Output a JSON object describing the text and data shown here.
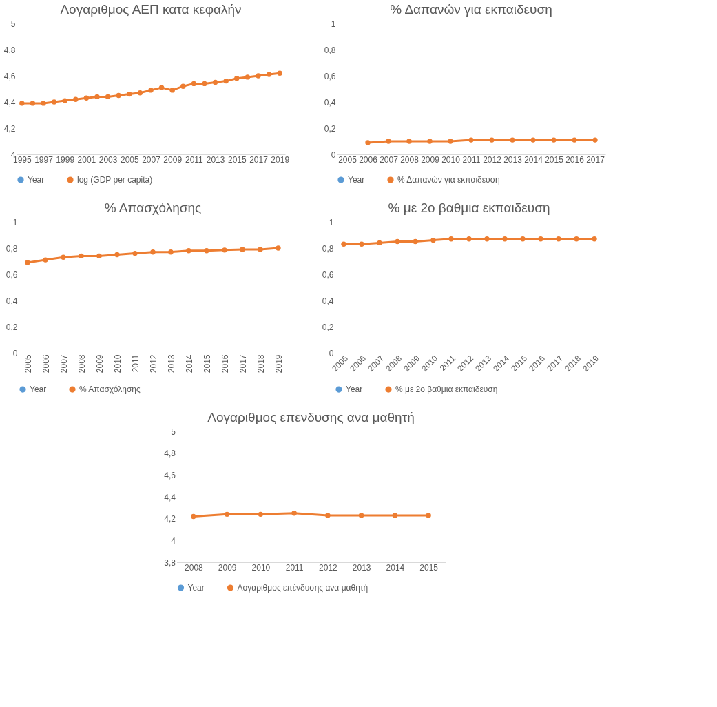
{
  "chart_data": [
    {
      "type": "line",
      "title": "Λογαριθμος ΑΕΠ κατα κεφαλήν",
      "categories": [
        "1995",
        null,
        "1997",
        null,
        "1999",
        null,
        "2001",
        null,
        "2003",
        null,
        "2005",
        null,
        "2007",
        null,
        "2009",
        null,
        "2011",
        null,
        "2013",
        null,
        "2015",
        null,
        "2017",
        null,
        "2019"
      ],
      "series": [
        {
          "name": "Year",
          "color": "#5b9bd5",
          "values": [
            null,
            null,
            null,
            null,
            null,
            null,
            null,
            null,
            null,
            null,
            null,
            null,
            null,
            null,
            null,
            null,
            null,
            null,
            null,
            null,
            null,
            null,
            null,
            null,
            null
          ]
        },
        {
          "name": "log (GDP per capita)",
          "color": "#ed7d31",
          "values": [
            4.39,
            4.39,
            4.39,
            4.4,
            4.41,
            4.42,
            4.43,
            4.44,
            4.44,
            4.45,
            4.46,
            4.47,
            4.49,
            4.51,
            4.49,
            4.52,
            4.54,
            4.54,
            4.55,
            4.56,
            4.58,
            4.59,
            4.6,
            4.61,
            4.62
          ]
        }
      ],
      "ylim": [
        4,
        5
      ],
      "yticks": [
        4,
        {
          "value": 4.2,
          "label": "4,2"
        },
        {
          "value": 4.4,
          "label": "4,4"
        },
        {
          "value": 4.6,
          "label": "4,6"
        },
        {
          "value": 4.8,
          "label": "4,8"
        },
        5
      ],
      "grid": false,
      "legend": "bottom",
      "marker": "circle",
      "line_style": "solid"
    },
    {
      "type": "line",
      "title": "% Δαπανών για εκπαιδευση",
      "categories": [
        "2005",
        "2006",
        "2007",
        "2008",
        "2009",
        "2010",
        "2011",
        "2012",
        "2013",
        "2014",
        "2015",
        "2016",
        "2017"
      ],
      "series": [
        {
          "name": "Year",
          "color": "#5b9bd5",
          "values": [
            null,
            null,
            null,
            null,
            null,
            null,
            null,
            null,
            null,
            null,
            null,
            null,
            null
          ]
        },
        {
          "name": "% Δαπανών για εκπαιδευση",
          "color": "#ed7d31",
          "values": [
            null,
            0.09,
            0.1,
            0.1,
            0.1,
            0.1,
            0.11,
            0.11,
            0.11,
            0.11,
            0.11,
            0.11,
            0.11
          ]
        }
      ],
      "ylim": [
        0,
        1
      ],
      "yticks": [
        0,
        {
          "value": 0.2,
          "label": "0,2"
        },
        {
          "value": 0.4,
          "label": "0,4"
        },
        {
          "value": 0.6,
          "label": "0,6"
        },
        {
          "value": 0.8,
          "label": "0,8"
        },
        1
      ],
      "grid": false,
      "legend": "bottom",
      "marker": "circle",
      "line_style": "solid"
    },
    {
      "type": "line",
      "title": "% Απασχόλησης",
      "categories": [
        "2005",
        "2006",
        "2007",
        "2008",
        "2009",
        "2010",
        "2011",
        "2012",
        "2013",
        "2014",
        "2015",
        "2016",
        "2017",
        "2018",
        "2019"
      ],
      "series": [
        {
          "name": "Year",
          "color": "#5b9bd5",
          "values": [
            null,
            null,
            null,
            null,
            null,
            null,
            null,
            null,
            null,
            null,
            null,
            null,
            null,
            null,
            null
          ]
        },
        {
          "name": "% Απασχόλησης",
          "color": "#ed7d31",
          "values": [
            0.69,
            0.71,
            0.73,
            0.74,
            0.74,
            0.75,
            0.76,
            0.77,
            0.77,
            0.78,
            0.78,
            0.785,
            0.79,
            0.79,
            0.8
          ]
        }
      ],
      "ylim": [
        0,
        1
      ],
      "yticks": [
        0,
        {
          "value": 0.2,
          "label": "0,2"
        },
        {
          "value": 0.4,
          "label": "0,4"
        },
        {
          "value": 0.6,
          "label": "0,6"
        },
        {
          "value": 0.8,
          "label": "0,8"
        },
        1
      ],
      "grid": false,
      "legend": "bottom",
      "marker": "circle",
      "line_style": "solid"
    },
    {
      "type": "line",
      "title": "% με 2ο βαθμια εκπαιδευση",
      "categories": [
        "2005",
        "2006",
        "2007",
        "2008",
        "2009",
        "2010",
        "2011",
        "2012",
        "2013",
        "2014",
        "2015",
        "2016",
        "2017",
        "2018",
        "2019"
      ],
      "series": [
        {
          "name": "Year",
          "color": "#5b9bd5",
          "values": [
            null,
            null,
            null,
            null,
            null,
            null,
            null,
            null,
            null,
            null,
            null,
            null,
            null,
            null,
            null
          ]
        },
        {
          "name": "% με 2ο βαθμια εκπαιδευση",
          "color": "#ed7d31",
          "values": [
            0.83,
            0.83,
            0.84,
            0.85,
            0.85,
            0.86,
            0.87,
            0.87,
            0.87,
            0.87,
            0.87,
            0.87,
            0.87,
            0.87,
            0.87
          ]
        }
      ],
      "ylim": [
        0,
        1
      ],
      "yticks": [
        0,
        {
          "value": 0.2,
          "label": "0,2"
        },
        {
          "value": 0.4,
          "label": "0,4"
        },
        {
          "value": 0.6,
          "label": "0,6"
        },
        {
          "value": 0.8,
          "label": "0,8"
        },
        1
      ],
      "grid": false,
      "legend": "bottom",
      "marker": "circle",
      "line_style": "solid"
    },
    {
      "type": "line",
      "title": "Λογαριθμος επενδυσης ανα μαθητή",
      "categories": [
        "2008",
        "2009",
        "2010",
        "2011",
        "2012",
        "2013",
        "2014",
        "2015"
      ],
      "series": [
        {
          "name": "Year",
          "color": "#5b9bd5",
          "values": [
            null,
            null,
            null,
            null,
            null,
            null,
            null,
            null
          ]
        },
        {
          "name": "Λογαριθμος επένδυσης ανα μαθητή",
          "color": "#ed7d31",
          "values": [
            4.22,
            4.24,
            4.24,
            4.25,
            4.23,
            4.23,
            4.23,
            4.23
          ]
        }
      ],
      "ylim": [
        3.8,
        5
      ],
      "yticks": [
        {
          "value": 3.8,
          "label": "3,8"
        },
        4,
        {
          "value": 4.2,
          "label": "4,2"
        },
        {
          "value": 4.4,
          "label": "4,4"
        },
        {
          "value": 4.6,
          "label": "4,6"
        },
        {
          "value": 4.8,
          "label": "4,8"
        },
        5
      ],
      "grid": false,
      "legend": "bottom",
      "marker": "circle",
      "line_style": "solid"
    }
  ]
}
